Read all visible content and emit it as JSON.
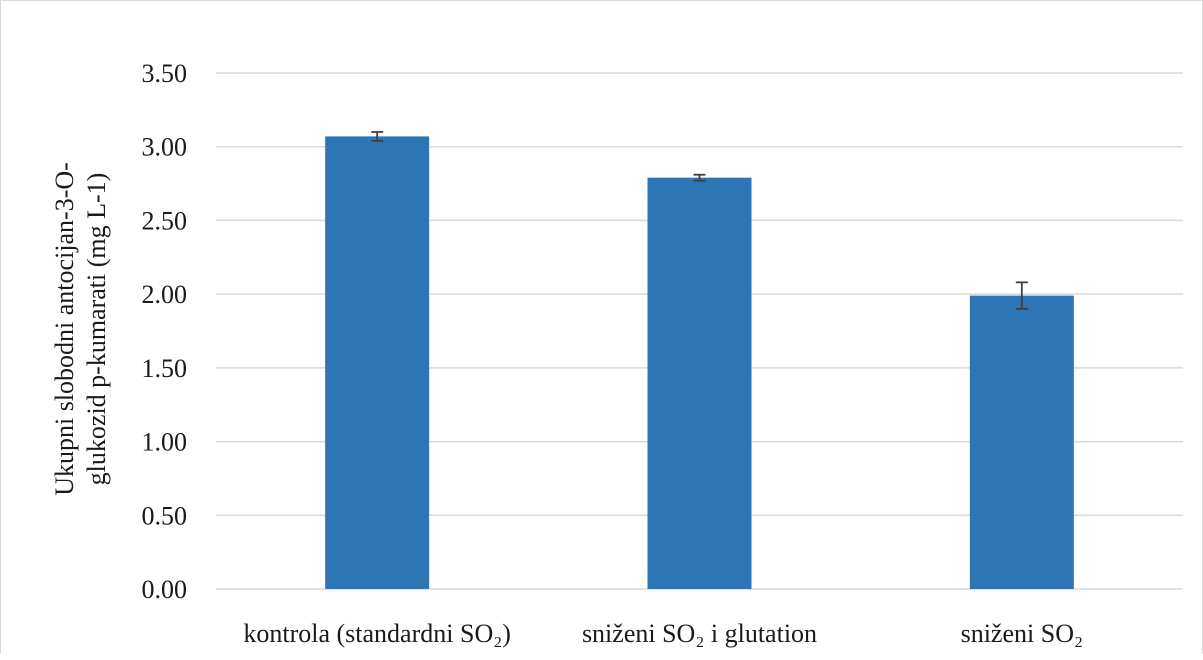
{
  "chart_data": {
    "type": "bar",
    "title": "",
    "xlabel": "",
    "ylabel": {
      "line1": "Ukupni slobodni antocijan-3-O-",
      "line2": "glukozid p-kumarati (mg L-1)"
    },
    "categories": [
      "kontrola (standardni SO₂)",
      "sniženi SO₂ i glutation",
      "sniženi SO₂"
    ],
    "values": [
      3.07,
      2.79,
      1.99
    ],
    "errors": [
      0.03,
      0.02,
      0.09
    ],
    "ylim": [
      0,
      3.5
    ],
    "yticks": [
      "0.00",
      "0.50",
      "1.00",
      "1.50",
      "2.00",
      "2.50",
      "3.00",
      "3.50"
    ],
    "ytick_values": [
      0,
      0.5,
      1.0,
      1.5,
      2.0,
      2.5,
      3.0,
      3.5
    ],
    "grid": true,
    "legend": "none",
    "colors": {
      "bar": "#2e75b6",
      "grid": "#d9d9d9",
      "error_bar": "#404040"
    }
  }
}
